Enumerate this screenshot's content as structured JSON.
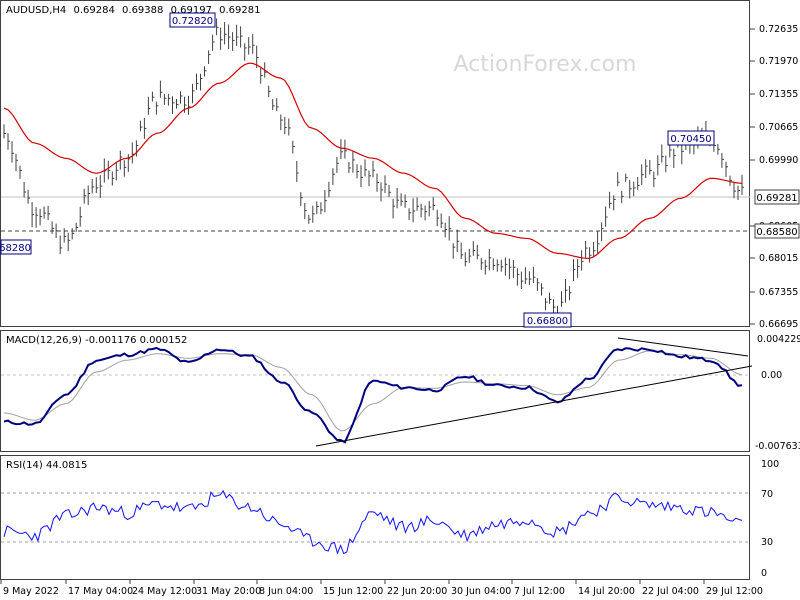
{
  "watermark": "ActionForex.com",
  "colors": {
    "price": "#404040",
    "sma": "#d40000",
    "macd": "#000080",
    "signal": "#a0a0a0",
    "rsi": "#1010ff",
    "border": "#404040",
    "label_border": "#000080"
  },
  "main": {
    "info": {
      "symbol": "AUDUSD,H4",
      "open": "0.69284",
      "high": "0.69388",
      "low": "0.69197",
      "close": "0.69281"
    },
    "annotations": {
      "high_may": "0.72820",
      "high_jul": "0.70450",
      "low_jun": "0.66800",
      "left_level": "0.68280",
      "current_price": "0.69281",
      "dashed_level": "0.68580"
    }
  },
  "macd": {
    "label": "MACD(12,26,9) -0.001176 0.000152",
    "axis_top": "0.004229",
    "axis_zero": "0.00",
    "axis_bottom": "-0.007633"
  },
  "rsi": {
    "label": "RSI(14) 44.0815",
    "axis_100": "100",
    "axis_70": "70",
    "axis_30": "30",
    "axis_0": "0"
  },
  "xaxis": {
    "labels": [
      "9 May 2022",
      "17 May 04:00",
      "24 May 12:00",
      "31 May 20:00",
      "8 Jun 04:00",
      "15 Jun 12:00",
      "22 Jun 20:00",
      "30 Jun 04:00",
      "7 Jul 12:00",
      "14 Jul 20:00",
      "22 Jul 04:00",
      "29 Jul 12:00"
    ]
  },
  "chart_data": [
    {
      "type": "line",
      "title": "AUDUSD,H4",
      "x": [
        "9 May 2022",
        "12 May",
        "15 May",
        "17 May 04:00",
        "20 May",
        "24 May 12:00",
        "28 May",
        "31 May 20:00",
        "4 Jun",
        "8 Jun 04:00",
        "12 Jun",
        "15 Jun 12:00",
        "19 Jun",
        "22 Jun 20:00",
        "26 Jun",
        "30 Jun 04:00",
        "3 Jul",
        "7 Jul 12:00",
        "11 Jul",
        "14 Jul 20:00",
        "18 Jul",
        "22 Jul 04:00",
        "26 Jul",
        "29 Jul 12:00",
        "1 Aug"
      ],
      "yticks": [
        "0.72635",
        "0.71970",
        "0.71355",
        "0.70665",
        "0.69990",
        "0.68605",
        "0.68015",
        "0.67355",
        "0.66695"
      ],
      "series": [
        {
          "values": [
            0.705,
            0.69,
            0.683,
            0.695,
            0.7,
            0.712,
            0.712,
            0.725,
            0.722,
            0.708,
            0.688,
            0.7,
            0.696,
            0.69,
            0.69,
            0.68,
            0.68,
            0.676,
            0.67,
            0.682,
            0.694,
            0.697,
            0.702,
            0.704,
            0.693
          ]
        },
        {
          "values": [
            0.71,
            0.703,
            0.7,
            0.697,
            0.7,
            0.705,
            0.71,
            0.715,
            0.719,
            0.716,
            0.706,
            0.702,
            0.7,
            0.697,
            0.694,
            0.688,
            0.685,
            0.684,
            0.681,
            0.68,
            0.684,
            0.688,
            0.692,
            0.696,
            0.695
          ]
        }
      ],
      "ylim": [
        0.6665,
        0.73
      ]
    },
    {
      "type": "line",
      "title": "MACD(12,26,9) -0.001176 0.000152",
      "x": [
        "9 May 2022",
        "12 May",
        "15 May",
        "17 May 04:00",
        "20 May",
        "24 May 12:00",
        "28 May",
        "31 May 20:00",
        "4 Jun",
        "8 Jun 04:00",
        "12 Jun",
        "15 Jun 12:00",
        "19 Jun",
        "22 Jun 20:00",
        "26 Jun",
        "30 Jun 04:00",
        "3 Jul",
        "7 Jul 12:00",
        "11 Jul",
        "14 Jul 20:00",
        "18 Jul",
        "22 Jul 04:00",
        "26 Jul",
        "29 Jul 12:00",
        "1 Aug"
      ],
      "series": [
        {
          "values": [
            -0.005,
            -0.0052,
            -0.002,
            0.0018,
            0.0024,
            0.003,
            0.0015,
            0.003,
            0.0022,
            -0.0005,
            -0.004,
            -0.0072,
            -0.0005,
            -0.0012,
            -0.0015,
            0.0,
            -0.001,
            -0.0012,
            -0.0028,
            -0.0003,
            0.003,
            0.003,
            0.0022,
            0.0018,
            -0.001
          ]
        },
        {
          "values": [
            -0.004,
            -0.0048,
            -0.003,
            0.0005,
            0.0018,
            0.0025,
            0.002,
            0.0025,
            0.0024,
            0.001,
            -0.002,
            -0.006,
            -0.003,
            -0.0012,
            -0.0013,
            -0.0006,
            -0.0008,
            -0.001,
            -0.002,
            -0.0012,
            0.0018,
            0.0028,
            0.0024,
            0.002,
            0.0002
          ]
        }
      ],
      "ylim": [
        -0.007633,
        0.004229
      ]
    },
    {
      "type": "line",
      "title": "RSI(14) 44.0815",
      "x": [
        "9 May 2022",
        "12 May",
        "15 May",
        "17 May 04:00",
        "20 May",
        "24 May 12:00",
        "28 May",
        "31 May 20:00",
        "4 Jun",
        "8 Jun 04:00",
        "12 Jun",
        "15 Jun 12:00",
        "19 Jun",
        "22 Jun 20:00",
        "26 Jun",
        "30 Jun 04:00",
        "3 Jul",
        "7 Jul 12:00",
        "11 Jul",
        "14 Jul 20:00",
        "18 Jul",
        "22 Jul 04:00",
        "26 Jul",
        "29 Jul 12:00",
        "1 Aug"
      ],
      "series": [
        {
          "values": [
            38,
            35,
            52,
            60,
            55,
            63,
            58,
            70,
            60,
            45,
            30,
            22,
            55,
            42,
            48,
            35,
            45,
            50,
            38,
            55,
            68,
            62,
            60,
            55,
            44
          ]
        }
      ],
      "ylim": [
        0,
        100
      ]
    }
  ]
}
